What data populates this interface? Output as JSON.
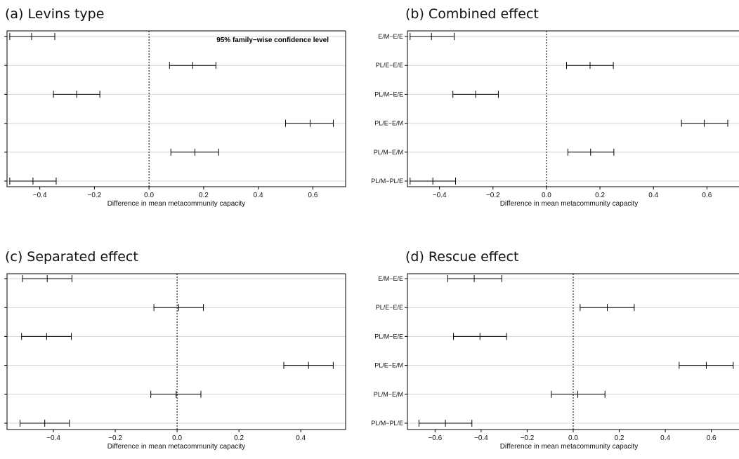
{
  "chart_data": [
    {
      "type": "errorbar",
      "title": "(a) Levins type",
      "xlabel": "Difference in mean metacommunity capacity",
      "annotation": "95% family−wise confidence level",
      "xlim": [
        -0.52,
        0.72
      ],
      "xticks": [
        -0.4,
        -0.2,
        0.0,
        0.2,
        0.4,
        0.6
      ],
      "xtick_labels": [
        "−0.4",
        "−0.2",
        "0.0",
        "0.2",
        "0.4",
        "0.6"
      ],
      "categories": [],
      "estimates": [
        {
          "diff": -0.43,
          "lwr": -0.51,
          "upr": -0.345
        },
        {
          "diff": 0.16,
          "lwr": 0.075,
          "upr": 0.245
        },
        {
          "diff": -0.265,
          "lwr": -0.35,
          "upr": -0.18
        },
        {
          "diff": 0.59,
          "lwr": 0.5,
          "upr": 0.675
        },
        {
          "diff": 0.168,
          "lwr": 0.08,
          "upr": 0.255
        },
        {
          "diff": -0.425,
          "lwr": -0.51,
          "upr": -0.34
        }
      ],
      "grid": "horizontal",
      "reference_line": 0
    },
    {
      "type": "errorbar",
      "title": "(b) Combined effect",
      "xlabel": "Difference in mean metacommunity capacity",
      "xlim": [
        -0.52,
        0.72
      ],
      "xticks": [
        -0.4,
        -0.2,
        0.0,
        0.2,
        0.4,
        0.6
      ],
      "xtick_labels": [
        "−0.4",
        "−0.2",
        "0.0",
        "0.2",
        "0.4",
        "0.6"
      ],
      "categories": [
        "E/M−E/E",
        "PL/E−E/E",
        "PL/M−E/E",
        "PL/E−E/M",
        "PL/M−E/M",
        "PL/M−PL/E"
      ],
      "estimates": [
        {
          "diff": -0.43,
          "lwr": -0.51,
          "upr": -0.345
        },
        {
          "diff": 0.163,
          "lwr": 0.075,
          "upr": 0.25
        },
        {
          "diff": -0.265,
          "lwr": -0.35,
          "upr": -0.18
        },
        {
          "diff": 0.59,
          "lwr": 0.505,
          "upr": 0.678
        },
        {
          "diff": 0.165,
          "lwr": 0.08,
          "upr": 0.252
        },
        {
          "diff": -0.425,
          "lwr": -0.51,
          "upr": -0.34
        }
      ],
      "grid": "horizontal",
      "reference_line": 0
    },
    {
      "type": "errorbar",
      "title": "(c) Separated effect",
      "xlabel": "Difference in mean metacommunity capacity",
      "xlim": [
        -0.55,
        0.545
      ],
      "xticks": [
        -0.4,
        -0.2,
        0.0,
        0.2,
        0.4
      ],
      "xtick_labels": [
        "−0.4",
        "−0.2",
        "0.0",
        "0.2",
        "0.4"
      ],
      "categories": [],
      "estimates": [
        {
          "diff": -0.42,
          "lwr": -0.5,
          "upr": -0.34
        },
        {
          "diff": 0.005,
          "lwr": -0.075,
          "upr": 0.085
        },
        {
          "diff": -0.422,
          "lwr": -0.503,
          "upr": -0.342
        },
        {
          "diff": 0.425,
          "lwr": 0.345,
          "upr": 0.505
        },
        {
          "diff": -0.003,
          "lwr": -0.085,
          "upr": 0.077
        },
        {
          "diff": -0.428,
          "lwr": -0.508,
          "upr": -0.348
        }
      ],
      "grid": "horizontal",
      "reference_line": 0
    },
    {
      "type": "errorbar",
      "title": "(d) Rescue effect",
      "xlabel": "Difference in mean metacommunity capacity",
      "xlim": [
        -0.72,
        0.72
      ],
      "xticks": [
        -0.6,
        -0.4,
        -0.2,
        0.0,
        0.2,
        0.4,
        0.6
      ],
      "xtick_labels": [
        "−0.6",
        "−0.4",
        "−0.2",
        "0.0",
        "0.2",
        "0.4",
        "0.6"
      ],
      "categories": [
        "E/M−E/E",
        "PL/E−E/E",
        "PL/M−E/E",
        "PL/E−E/M",
        "PL/M−E/M",
        "PL/M−PL/E"
      ],
      "estimates": [
        {
          "diff": -0.43,
          "lwr": -0.545,
          "upr": -0.31
        },
        {
          "diff": 0.148,
          "lwr": 0.03,
          "upr": 0.265
        },
        {
          "diff": -0.405,
          "lwr": -0.52,
          "upr": -0.29
        },
        {
          "diff": 0.578,
          "lwr": 0.46,
          "upr": 0.695
        },
        {
          "diff": 0.02,
          "lwr": -0.095,
          "upr": 0.138
        },
        {
          "diff": -0.555,
          "lwr": -0.67,
          "upr": -0.44
        }
      ],
      "grid": "horizontal",
      "reference_line": 0
    }
  ]
}
